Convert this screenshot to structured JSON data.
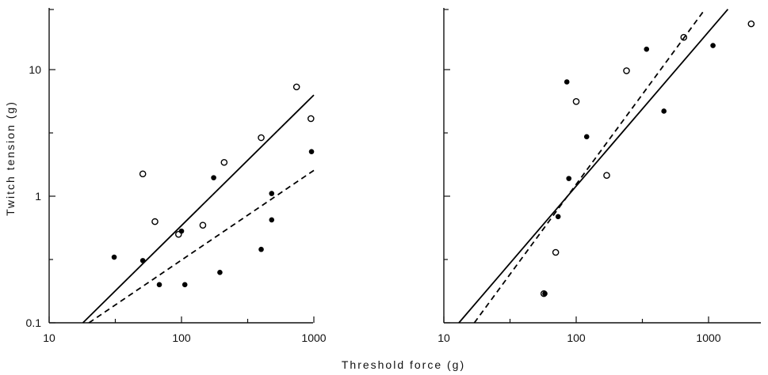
{
  "x_axis_title": "Threshold force (g)",
  "y_axis_title": "Twitch tension (g)",
  "chart_data": [
    {
      "type": "scatter",
      "xscale": "log",
      "yscale": "log",
      "xlim": [
        10,
        1000
      ],
      "ylim": [
        0.1,
        30
      ],
      "x_ticks": [
        "10",
        "100",
        "1000"
      ],
      "y_ticks": [
        "0.1",
        "1",
        "10"
      ],
      "grid": false,
      "series": [
        {
          "marker": "open-circle",
          "points": [
            [
              51,
              1.5
            ],
            [
              63,
              0.63
            ],
            [
              95,
              0.5
            ],
            [
              145,
              0.59
            ],
            [
              210,
              1.85
            ],
            [
              400,
              2.9
            ],
            [
              740,
              7.3
            ],
            [
              950,
              4.1
            ]
          ]
        },
        {
          "marker": "filled-circle",
          "points": [
            [
              31,
              0.33
            ],
            [
              51,
              0.31
            ],
            [
              68,
              0.2
            ],
            [
              100,
              0.53
            ],
            [
              106,
              0.2
            ],
            [
              175,
              1.4
            ],
            [
              195,
              0.25
            ],
            [
              400,
              0.38
            ],
            [
              480,
              1.05
            ],
            [
              480,
              0.65
            ],
            [
              960,
              2.25
            ]
          ]
        },
        {
          "line": "solid",
          "points": [
            [
              18,
              0.1
            ],
            [
              1000,
              6.3
            ]
          ]
        },
        {
          "line": "dashed",
          "points": [
            [
              20,
              0.1
            ],
            [
              1000,
              1.6
            ]
          ]
        }
      ]
    },
    {
      "type": "scatter",
      "xscale": "log",
      "yscale": "log",
      "xlim": [
        10,
        2500
      ],
      "ylim": [
        0.1,
        30
      ],
      "x_ticks": [
        "10",
        "100",
        "1000"
      ],
      "y_ticks": [],
      "grid": false,
      "series": [
        {
          "marker": "open-circle",
          "points": [
            [
              57,
              0.17
            ],
            [
              70,
              0.36
            ],
            [
              100,
              5.6
            ],
            [
              170,
              1.46
            ],
            [
              240,
              9.8
            ],
            [
              650,
              18
            ],
            [
              2100,
              23
            ]
          ]
        },
        {
          "marker": "filled-circle",
          "points": [
            [
              58,
              0.17
            ],
            [
              73,
              0.69
            ],
            [
              85,
              8.0
            ],
            [
              88,
              1.38
            ],
            [
              120,
              2.95
            ],
            [
              340,
              14.5
            ],
            [
              460,
              4.7
            ],
            [
              1080,
              15.5
            ]
          ]
        },
        {
          "line": "solid",
          "points": [
            [
              13,
              0.1
            ],
            [
              1400,
              30
            ]
          ]
        },
        {
          "line": "dashed",
          "points": [
            [
              17,
              0.1
            ],
            [
              940,
              30
            ]
          ]
        }
      ]
    }
  ]
}
